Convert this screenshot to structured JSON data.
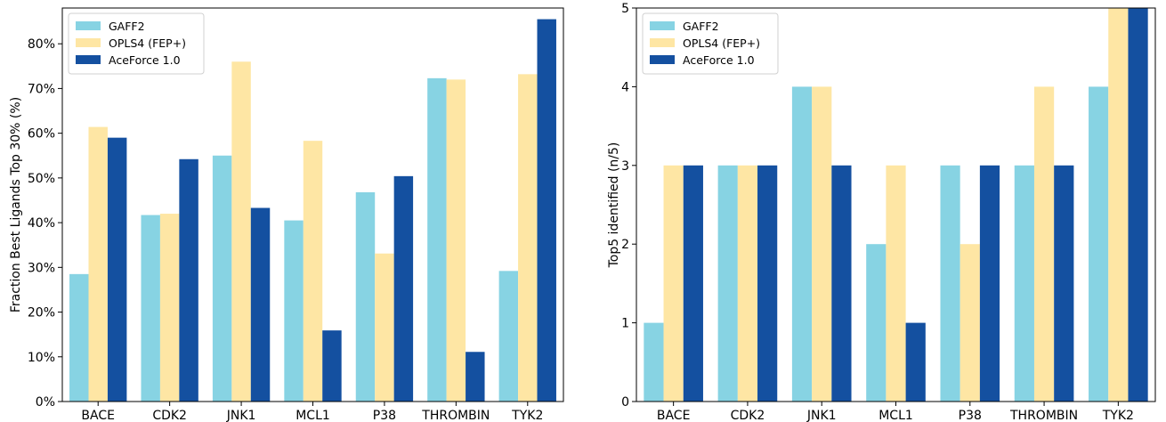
{
  "colors": {
    "GAFF2": "#87d3e3",
    "OPLS4": "#fee6a4",
    "AceForce": "#1450a0"
  },
  "chart_data": [
    {
      "type": "bar",
      "categories": [
        "BACE",
        "CDK2",
        "JNK1",
        "MCL1",
        "P38",
        "THROMBIN",
        "TYK2"
      ],
      "series": [
        {
          "name": "GAFF2",
          "values": [
            28.5,
            41.7,
            55.0,
            40.5,
            46.8,
            72.3,
            29.2
          ]
        },
        {
          "name": "OPLS4 (FEP+)",
          "values": [
            61.4,
            42.0,
            76.0,
            58.3,
            33.1,
            72.0,
            73.2
          ]
        },
        {
          "name": "AceForce 1.0",
          "values": [
            59.0,
            54.2,
            43.3,
            15.9,
            50.4,
            11.1,
            85.5
          ]
        }
      ],
      "ylabel": "Fraction Best Ligands Top 30% (%)",
      "ylim": [
        0,
        88
      ],
      "yticks": [
        0,
        10,
        20,
        30,
        40,
        50,
        60,
        70,
        80
      ],
      "ytick_labels": [
        "0%",
        "10%",
        "20%",
        "30%",
        "40%",
        "50%",
        "60%",
        "70%",
        "80%"
      ],
      "legend": "top-left"
    },
    {
      "type": "bar",
      "categories": [
        "BACE",
        "CDK2",
        "JNK1",
        "MCL1",
        "P38",
        "THROMBIN",
        "TYK2"
      ],
      "series": [
        {
          "name": "GAFF2",
          "values": [
            1,
            3,
            4,
            2,
            3,
            3,
            4
          ]
        },
        {
          "name": "OPLS4 (FEP+)",
          "values": [
            3,
            3,
            4,
            3,
            2,
            4,
            5
          ]
        },
        {
          "name": "AceForce 1.0",
          "values": [
            3,
            3,
            3,
            1,
            3,
            3,
            5
          ]
        }
      ],
      "ylabel": "Top5 identified (n/5)",
      "ylim": [
        0,
        5
      ],
      "yticks": [
        0,
        1,
        2,
        3,
        4,
        5
      ],
      "ytick_labels": [
        "0",
        "1",
        "2",
        "3",
        "4",
        "5"
      ],
      "legend": "top-left"
    }
  ]
}
